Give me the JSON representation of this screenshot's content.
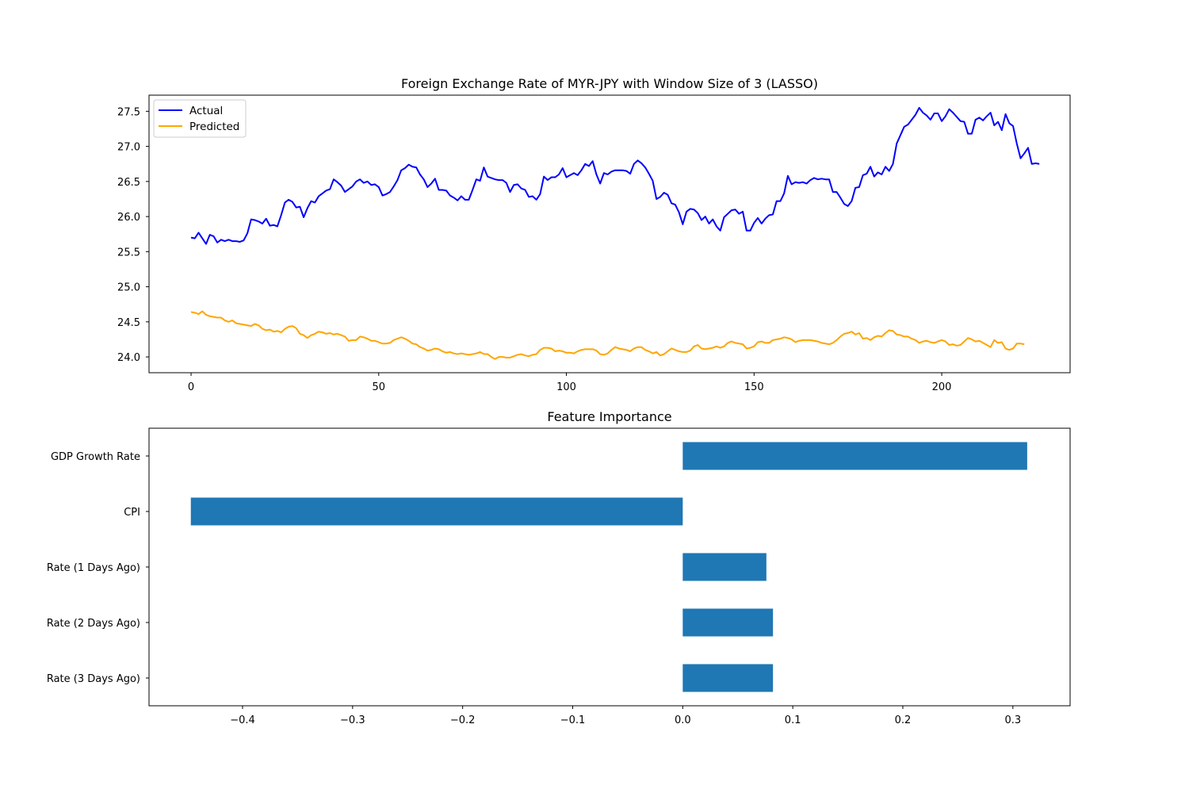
{
  "chart_data": [
    {
      "type": "line",
      "title": "Foreign Exchange Rate of MYR-JPY with Window Size of 3 (LASSO)",
      "xlabel": "",
      "ylabel": "",
      "xlim": [
        -11.2,
        234.2
      ],
      "ylim": [
        23.775,
        27.73
      ],
      "x_ticks": [
        0,
        50,
        100,
        150,
        200
      ],
      "y_ticks": [
        24.0,
        24.5,
        25.0,
        25.5,
        26.0,
        26.5,
        27.0,
        27.5
      ],
      "y_tick_labels": [
        "24.0",
        "24.5",
        "25.0",
        "25.5",
        "26.0",
        "26.5",
        "27.0",
        "27.5"
      ],
      "grid": false,
      "legend_position": "upper-left",
      "x_start": 0,
      "series": [
        {
          "name": "Actual",
          "color": "#0000ff",
          "values": [
            25.7,
            25.69,
            25.77,
            25.69,
            25.61,
            25.74,
            25.72,
            25.63,
            25.67,
            25.65,
            25.67,
            25.65,
            25.65,
            25.64,
            25.66,
            25.76,
            25.96,
            25.95,
            25.93,
            25.9,
            25.97,
            25.87,
            25.88,
            25.86,
            26.02,
            26.2,
            26.24,
            26.21,
            26.13,
            26.14,
            25.99,
            26.12,
            26.22,
            26.2,
            26.29,
            26.33,
            26.37,
            26.39,
            26.53,
            26.49,
            26.44,
            26.35,
            26.39,
            26.43,
            26.5,
            26.53,
            26.48,
            26.5,
            26.45,
            26.46,
            26.42,
            26.3,
            26.32,
            26.35,
            26.43,
            26.52,
            26.66,
            26.69,
            26.74,
            26.71,
            26.7,
            26.6,
            26.53,
            26.42,
            26.47,
            26.54,
            26.38,
            26.38,
            26.37,
            26.3,
            26.27,
            26.23,
            26.29,
            26.24,
            26.24,
            26.38,
            26.53,
            26.51,
            26.7,
            26.57,
            26.55,
            26.53,
            26.52,
            26.52,
            26.48,
            26.35,
            26.45,
            26.46,
            26.4,
            26.38,
            26.28,
            26.29,
            26.24,
            26.32,
            26.57,
            26.52,
            26.56,
            26.56,
            26.6,
            26.69,
            26.56,
            26.59,
            26.62,
            26.59,
            26.66,
            26.75,
            26.72,
            26.79,
            26.6,
            26.47,
            26.62,
            26.6,
            26.64,
            26.66,
            26.66,
            26.66,
            26.65,
            26.61,
            26.75,
            26.8,
            26.76,
            26.7,
            26.61,
            26.51,
            26.25,
            26.28,
            26.34,
            26.31,
            26.19,
            26.17,
            26.06,
            25.89,
            26.07,
            26.11,
            26.1,
            26.05,
            25.95,
            26.0,
            25.9,
            25.96,
            25.86,
            25.8,
            25.99,
            26.04,
            26.09,
            26.1,
            26.04,
            26.07,
            25.8,
            25.8,
            25.91,
            25.98,
            25.9,
            25.97,
            26.02,
            26.03,
            26.22,
            26.22,
            26.33,
            26.58,
            26.46,
            26.49,
            26.48,
            26.49,
            26.47,
            26.52,
            26.55,
            26.53,
            26.54,
            26.53,
            26.53,
            26.35,
            26.35,
            26.27,
            26.18,
            26.15,
            26.22,
            26.41,
            26.42,
            26.59,
            26.61,
            26.71,
            26.57,
            26.63,
            26.6,
            26.71,
            26.65,
            26.75,
            27.04,
            27.16,
            27.28,
            27.31,
            27.38,
            27.45,
            27.55,
            27.48,
            27.44,
            27.38,
            27.47,
            27.47,
            27.36,
            27.43,
            27.53,
            27.48,
            27.42,
            27.36,
            27.35,
            27.18,
            27.18,
            27.38,
            27.41,
            27.37,
            27.43,
            27.48,
            27.3,
            27.35,
            27.23,
            27.46,
            27.33,
            27.29,
            27.04,
            26.83,
            26.9,
            26.98,
            26.75,
            26.76,
            26.75
          ]
        },
        {
          "name": "Predicted",
          "color": "#ffa500",
          "values": [
            24.64,
            24.63,
            24.61,
            24.65,
            24.6,
            24.58,
            24.57,
            24.56,
            24.56,
            24.52,
            24.5,
            24.52,
            24.48,
            24.47,
            24.46,
            24.45,
            24.44,
            24.47,
            24.45,
            24.4,
            24.38,
            24.39,
            24.36,
            24.37,
            24.35,
            24.4,
            24.43,
            24.44,
            24.41,
            24.33,
            24.31,
            24.27,
            24.31,
            24.33,
            24.36,
            24.35,
            24.33,
            24.34,
            24.32,
            24.33,
            24.31,
            24.29,
            24.23,
            24.24,
            24.24,
            24.29,
            24.28,
            24.26,
            24.23,
            24.23,
            24.21,
            24.19,
            24.19,
            24.2,
            24.24,
            24.26,
            24.28,
            24.26,
            24.23,
            24.19,
            24.18,
            24.14,
            24.12,
            24.09,
            24.1,
            24.12,
            24.11,
            24.08,
            24.06,
            24.07,
            24.05,
            24.04,
            24.05,
            24.04,
            24.03,
            24.04,
            24.05,
            24.07,
            24.04,
            24.04,
            24.0,
            23.97,
            24.0,
            24.0,
            23.99,
            23.99,
            24.01,
            24.03,
            24.04,
            24.02,
            24.01,
            24.03,
            24.04,
            24.1,
            24.13,
            24.13,
            24.12,
            24.08,
            24.09,
            24.08,
            24.06,
            24.06,
            24.05,
            24.08,
            24.1,
            24.11,
            24.11,
            24.11,
            24.09,
            24.04,
            24.03,
            24.05,
            24.1,
            24.14,
            24.12,
            24.11,
            24.1,
            24.08,
            24.12,
            24.14,
            24.14,
            24.1,
            24.08,
            24.05,
            24.07,
            24.02,
            24.04,
            24.08,
            24.12,
            24.1,
            24.08,
            24.07,
            24.07,
            24.09,
            24.15,
            24.17,
            24.12,
            24.11,
            24.12,
            24.13,
            24.15,
            24.13,
            24.15,
            24.2,
            24.22,
            24.2,
            24.19,
            24.18,
            24.12,
            24.13,
            24.15,
            24.21,
            24.22,
            24.2,
            24.2,
            24.24,
            24.25,
            24.26,
            24.28,
            24.27,
            24.25,
            24.21,
            24.23,
            24.24,
            24.24,
            24.24,
            24.23,
            24.22,
            24.2,
            24.19,
            24.18,
            24.2,
            24.24,
            24.29,
            24.33,
            24.34,
            24.36,
            24.32,
            24.34,
            24.26,
            24.27,
            24.24,
            24.28,
            24.3,
            24.29,
            24.34,
            24.38,
            24.37,
            24.32,
            24.31,
            24.29,
            24.29,
            24.26,
            24.24,
            24.2,
            24.22,
            24.23,
            24.21,
            24.2,
            24.22,
            24.24,
            24.22,
            24.17,
            24.18,
            24.16,
            24.17,
            24.22,
            24.27,
            24.25,
            24.22,
            24.23,
            24.2,
            24.17,
            24.14,
            24.24,
            24.2,
            24.21,
            24.12,
            24.1,
            24.12,
            24.19,
            24.19,
            24.18
          ]
        }
      ]
    },
    {
      "type": "bar",
      "orientation": "horizontal",
      "title": "Feature Importance",
      "xlabel": "",
      "ylabel": "",
      "categories": [
        "GDP Growth Rate",
        "CPI",
        "Rate (1 Days Ago)",
        "Rate (2 Days Ago)",
        "Rate (3 Days Ago)"
      ],
      "values": [
        0.313,
        -0.447,
        0.076,
        0.082,
        0.082
      ],
      "xlim": [
        -0.485,
        0.352
      ],
      "x_ticks": [
        -0.4,
        -0.3,
        -0.2,
        -0.1,
        0.0,
        0.1,
        0.2,
        0.3
      ],
      "x_tick_labels": [
        "−0.4",
        "−0.3",
        "−0.2",
        "−0.1",
        "0.0",
        "0.1",
        "0.2",
        "0.3"
      ],
      "color": "#1f77b4",
      "grid": false
    }
  ]
}
